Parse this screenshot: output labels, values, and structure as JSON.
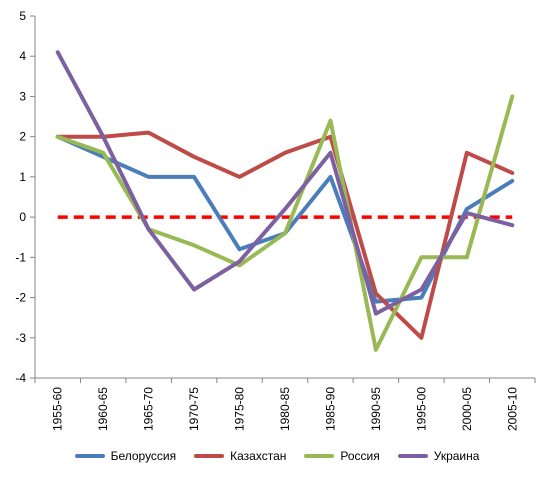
{
  "chart_data": {
    "type": "line",
    "categories": [
      "1955-60",
      "1960-65",
      "1965-70",
      "1970-75",
      "1975-80",
      "1980-85",
      "1985-90",
      "1990-95",
      "1995-00",
      "2000-05",
      "2005-10"
    ],
    "ylim": [
      -4,
      5
    ],
    "yticks": [
      5,
      4,
      3,
      2,
      1,
      0,
      -1,
      -2,
      -3,
      -4
    ],
    "grid": false,
    "legend_position": "bottom",
    "series": [
      {
        "name": "Белоруссия",
        "color": "#4a7ebb",
        "values": [
          2,
          1.5,
          1,
          1,
          -0.8,
          -0.4,
          1,
          -2.1,
          -2,
          0.2,
          0.9
        ]
      },
      {
        "name": "Казахстан",
        "color": "#be4b48",
        "values": [
          2,
          2,
          2.1,
          1.5,
          1,
          1.6,
          2,
          -1.9,
          -3,
          1.6,
          1.1
        ]
      },
      {
        "name": "Россия",
        "color": "#98b954",
        "values": [
          2,
          1.6,
          -0.3,
          -0.7,
          -1.2,
          -0.4,
          2.4,
          -3.3,
          -1,
          -1,
          3
        ]
      },
      {
        "name": "Украина",
        "color": "#7d60a0",
        "values": [
          4.1,
          2,
          -0.3,
          -1.8,
          -1.1,
          0.2,
          1.6,
          -2.4,
          -1.8,
          0.1,
          -0.2
        ]
      }
    ],
    "reference_line": {
      "value": 0,
      "color": "#ff0000"
    }
  }
}
